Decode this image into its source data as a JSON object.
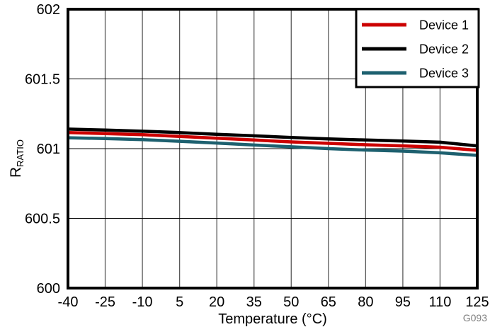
{
  "figure": {
    "id_label": "G093",
    "background": "#ffffff"
  },
  "chart_data": {
    "type": "line",
    "title": "",
    "xlabel": "Temperature (°C)",
    "ylabel": "R",
    "ylabel_sub": "RATIO",
    "xlim": [
      -40,
      125
    ],
    "ylim": [
      600,
      602
    ],
    "x_ticks": [
      -40,
      -25,
      -10,
      5,
      20,
      35,
      50,
      65,
      80,
      95,
      110,
      125
    ],
    "x_tick_labels": [
      "-40",
      "-25",
      "-10",
      "5",
      "20",
      "35",
      "50",
      "65",
      "80",
      "95",
      "110",
      "125"
    ],
    "y_ticks": [
      600,
      600.5,
      601,
      601.5,
      602
    ],
    "y_tick_labels": [
      "600",
      "600.5",
      "601",
      "601.5",
      "602"
    ],
    "grid": true,
    "legend_position": "top-right",
    "x": [
      -40,
      -25,
      -10,
      5,
      20,
      35,
      50,
      65,
      80,
      95,
      110,
      125
    ],
    "series": [
      {
        "name": "Device 1",
        "color": "#cc0000",
        "values": [
          601.115,
          601.108,
          601.1,
          601.088,
          601.075,
          601.062,
          601.048,
          601.038,
          601.028,
          601.02,
          601.01,
          600.988
        ]
      },
      {
        "name": "Device 2",
        "color": "#000000",
        "values": [
          601.14,
          601.133,
          601.125,
          601.115,
          601.103,
          601.092,
          601.08,
          601.07,
          601.062,
          601.055,
          601.046,
          601.02
        ]
      },
      {
        "name": "Device 3",
        "color": "#1d606f",
        "values": [
          601.078,
          601.072,
          601.065,
          601.053,
          601.04,
          601.026,
          601.013,
          601.0,
          600.99,
          600.982,
          600.97,
          600.952
        ]
      }
    ],
    "style": {
      "frame_color": "#000000",
      "grid_vertical_color": "#5a5a5a",
      "grid_horizontal_color": "#000000",
      "annotation_color": "#808080",
      "background": "#ffffff"
    }
  }
}
